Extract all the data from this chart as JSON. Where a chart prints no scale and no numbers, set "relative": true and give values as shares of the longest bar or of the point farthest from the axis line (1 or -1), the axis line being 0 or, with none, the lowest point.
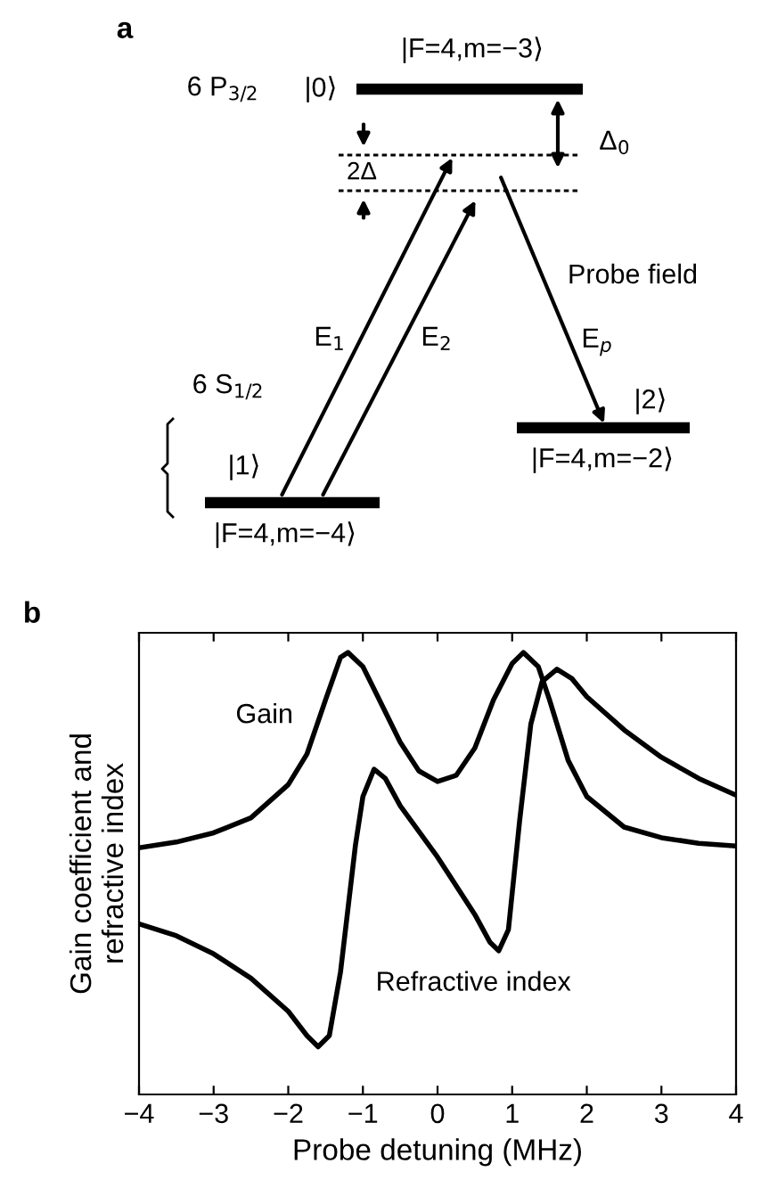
{
  "chart_data": [
    {
      "type": "other",
      "annotations": [
        "a",
        "6 P$_{3/2}$",
        "|0⟩",
        "|F=4,m=−3⟩",
        "Δ$_{0}$",
        "2Δ",
        "Probe field",
        "E$_{1}$",
        "E$_{2}$",
        "E$_{p}$",
        "6 S$_{1/2}$",
        "|1⟩",
        "|F=4,m=−4⟩",
        "|2⟩",
        "|F=4,m=−2⟩"
      ]
    },
    {
      "type": "line",
      "relative": true,
      "xlabel": "Probe detuning (MHz)",
      "ylabel": "Gain coefficient and\nrefractive index",
      "annotations": [
        "b"
      ],
      "xlim": [
        -4,
        4
      ],
      "xticks": [
        {
          "value": -4,
          "label": "−4"
        },
        {
          "value": -3,
          "label": "−3"
        },
        {
          "value": -2,
          "label": "−2"
        },
        {
          "value": -1,
          "label": "−1"
        },
        0,
        1,
        2,
        3,
        4
      ],
      "grid": false,
      "legend": false,
      "marker": "none",
      "line_style": "solid",
      "tick_labels": "x",
      "series": [
        {
          "name": "Gain",
          "color": "#000000",
          "x": [
            -4,
            -3.5,
            -3,
            -2.5,
            -2,
            -1.75,
            -1.5,
            -1.3,
            -1.2,
            -1.0,
            -0.8,
            -0.5,
            -0.25,
            0,
            0.25,
            0.5,
            0.75,
            1.0,
            1.15,
            1.35,
            1.5,
            1.75,
            2,
            2.5,
            3,
            3.5,
            4
          ],
          "values": [
            0.558,
            0.571,
            0.592,
            0.626,
            0.701,
            0.77,
            0.893,
            0.989,
            1.0,
            0.968,
            0.9,
            0.797,
            0.732,
            0.708,
            0.722,
            0.784,
            0.893,
            0.975,
            1.0,
            0.968,
            0.893,
            0.756,
            0.674,
            0.605,
            0.581,
            0.568,
            0.562
          ]
        },
        {
          "name": "Refractive index",
          "color": "#000000",
          "x": [
            -4,
            -3.5,
            -3,
            -2.5,
            -2,
            -1.75,
            -1.6,
            -1.45,
            -1.3,
            -1.1,
            -1.0,
            -0.85,
            -0.7,
            -0.5,
            0,
            0.5,
            0.7,
            0.82,
            0.95,
            1.1,
            1.25,
            1.4,
            1.6,
            1.8,
            2.0,
            2.5,
            3,
            3.5,
            4
          ],
          "values": [
            0.386,
            0.359,
            0.318,
            0.263,
            0.188,
            0.133,
            0.108,
            0.133,
            0.277,
            0.564,
            0.674,
            0.736,
            0.715,
            0.653,
            0.537,
            0.407,
            0.345,
            0.325,
            0.373,
            0.619,
            0.838,
            0.934,
            0.962,
            0.941,
            0.9,
            0.825,
            0.763,
            0.715,
            0.677
          ]
        }
      ]
    }
  ]
}
